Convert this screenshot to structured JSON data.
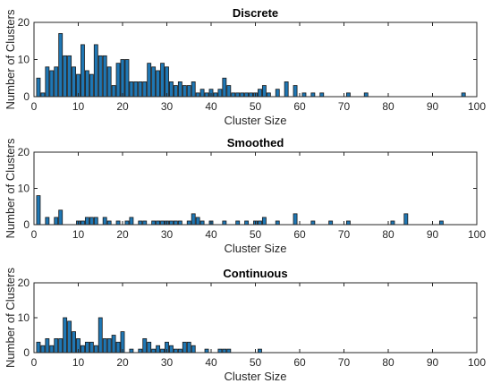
{
  "style": {
    "bar_color": "#1f77b4",
    "axis_color": "#262626"
  },
  "chart_data": [
    {
      "type": "bar",
      "title": "Discrete",
      "xlabel": "Cluster Size",
      "ylabel": "Number of Clusters",
      "xlim": [
        0,
        100
      ],
      "ylim": [
        0,
        20
      ],
      "xticks": [
        0,
        10,
        20,
        30,
        40,
        50,
        60,
        70,
        80,
        90,
        100
      ],
      "yticks": [
        0,
        10,
        20
      ],
      "grid": false,
      "x": [
        1,
        2,
        3,
        4,
        5,
        6,
        7,
        8,
        9,
        10,
        11,
        12,
        13,
        14,
        15,
        16,
        17,
        18,
        19,
        20,
        21,
        22,
        23,
        24,
        25,
        26,
        27,
        28,
        29,
        30,
        31,
        32,
        33,
        34,
        35,
        36,
        37,
        38,
        39,
        40,
        41,
        42,
        43,
        44,
        45,
        46,
        47,
        48,
        49,
        50,
        51,
        52,
        53,
        55,
        57,
        59,
        61,
        63,
        65,
        71,
        75,
        97
      ],
      "values": [
        5,
        1,
        8,
        7,
        8,
        17,
        11,
        11,
        8,
        6,
        14,
        7,
        6,
        14,
        11,
        11,
        8,
        3,
        9,
        10,
        10,
        4,
        4,
        4,
        4,
        9,
        8,
        7,
        9,
        8,
        4,
        3,
        4,
        3,
        3,
        4,
        1,
        2,
        1,
        2,
        1,
        2,
        5,
        3,
        1,
        1,
        1,
        1,
        1,
        1,
        2,
        3,
        1,
        2,
        4,
        3,
        1,
        1,
        1,
        1,
        1,
        1
      ]
    },
    {
      "type": "bar",
      "title": "Smoothed",
      "xlabel": "Cluster Size",
      "ylabel": "Number of Clusters",
      "xlim": [
        0,
        100
      ],
      "ylim": [
        0,
        20
      ],
      "xticks": [
        0,
        10,
        20,
        30,
        40,
        50,
        60,
        70,
        80,
        90,
        100
      ],
      "yticks": [
        0,
        10,
        20
      ],
      "grid": false,
      "x": [
        1,
        3,
        5,
        6,
        10,
        11,
        12,
        13,
        14,
        16,
        17,
        19,
        21,
        22,
        24,
        25,
        27,
        28,
        29,
        30,
        31,
        32,
        33,
        35,
        36,
        37,
        38,
        40,
        43,
        46,
        48,
        50,
        51,
        52,
        55,
        59,
        63,
        67,
        71,
        81,
        84,
        92
      ],
      "values": [
        8,
        2,
        2,
        4,
        1,
        1,
        2,
        2,
        2,
        2,
        1,
        1,
        1,
        2,
        1,
        1,
        1,
        1,
        1,
        1,
        1,
        1,
        1,
        1,
        3,
        2,
        1,
        1,
        1,
        1,
        1,
        1,
        1,
        2,
        1,
        3,
        1,
        1,
        1,
        1,
        3,
        1
      ]
    },
    {
      "type": "bar",
      "title": "Continuous",
      "xlabel": "Cluster Size",
      "ylabel": "Number of Clusters",
      "xlim": [
        0,
        100
      ],
      "ylim": [
        0,
        20
      ],
      "xticks": [
        0,
        10,
        20,
        30,
        40,
        50,
        60,
        70,
        80,
        90,
        100
      ],
      "yticks": [
        0,
        10,
        20
      ],
      "grid": false,
      "x": [
        1,
        2,
        3,
        4,
        5,
        6,
        7,
        8,
        9,
        10,
        11,
        12,
        13,
        14,
        15,
        16,
        17,
        18,
        19,
        20,
        22,
        24,
        25,
        26,
        27,
        28,
        29,
        30,
        31,
        32,
        33,
        34,
        35,
        36,
        39,
        42,
        43,
        44,
        51
      ],
      "values": [
        3,
        2,
        4,
        2,
        4,
        4,
        10,
        9,
        6,
        4,
        2,
        3,
        3,
        2,
        10,
        4,
        4,
        5,
        3,
        6,
        1,
        1,
        4,
        3,
        1,
        2,
        1,
        3,
        2,
        1,
        1,
        3,
        3,
        2,
        1,
        1,
        1,
        1,
        1
      ]
    }
  ]
}
